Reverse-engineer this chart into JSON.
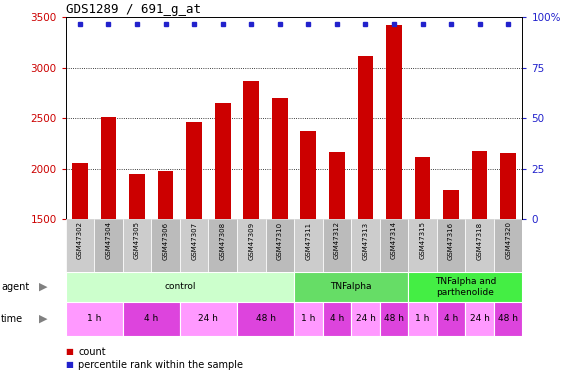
{
  "title": "GDS1289 / 691_g_at",
  "samples": [
    "GSM47302",
    "GSM47304",
    "GSM47305",
    "GSM47306",
    "GSM47307",
    "GSM47308",
    "GSM47309",
    "GSM47310",
    "GSM47311",
    "GSM47312",
    "GSM47313",
    "GSM47314",
    "GSM47315",
    "GSM47316",
    "GSM47318",
    "GSM47320"
  ],
  "counts": [
    2060,
    2510,
    1950,
    1975,
    2460,
    2650,
    2870,
    2700,
    2370,
    2165,
    3110,
    3420,
    2115,
    1790,
    2175,
    2155
  ],
  "percentiles_y": [
    3480,
    3480,
    3480,
    3480,
    3480,
    3480,
    3480,
    3480,
    3480,
    3480,
    3480,
    3480,
    3480,
    3480,
    3480,
    3480
  ],
  "bar_color": "#cc0000",
  "dot_color": "#2222cc",
  "ylim_left": [
    1500,
    3500
  ],
  "ylim_right": [
    0,
    100
  ],
  "yticks_left": [
    1500,
    2000,
    2500,
    3000,
    3500
  ],
  "yticks_right": [
    0,
    25,
    50,
    75,
    100
  ],
  "grid_yticks": [
    2000,
    2500,
    3000
  ],
  "agent_groups": [
    {
      "label": "control",
      "start": 0,
      "end": 8,
      "color": "#ccffcc"
    },
    {
      "label": "TNFalpha",
      "start": 8,
      "end": 12,
      "color": "#66dd66"
    },
    {
      "label": "TNFalpha and\nparthenolide",
      "start": 12,
      "end": 16,
      "color": "#44ee44"
    }
  ],
  "time_groups": [
    {
      "label": "1 h",
      "start": 0,
      "end": 2,
      "color": "#ff99ff"
    },
    {
      "label": "4 h",
      "start": 2,
      "end": 4,
      "color": "#dd44dd"
    },
    {
      "label": "24 h",
      "start": 4,
      "end": 6,
      "color": "#ff99ff"
    },
    {
      "label": "48 h",
      "start": 6,
      "end": 8,
      "color": "#dd44dd"
    },
    {
      "label": "1 h",
      "start": 8,
      "end": 9,
      "color": "#ff99ff"
    },
    {
      "label": "4 h",
      "start": 9,
      "end": 10,
      "color": "#dd44dd"
    },
    {
      "label": "24 h",
      "start": 10,
      "end": 11,
      "color": "#ff99ff"
    },
    {
      "label": "48 h",
      "start": 11,
      "end": 12,
      "color": "#dd44dd"
    },
    {
      "label": "1 h",
      "start": 12,
      "end": 13,
      "color": "#ff99ff"
    },
    {
      "label": "4 h",
      "start": 13,
      "end": 14,
      "color": "#dd44dd"
    },
    {
      "label": "24 h",
      "start": 14,
      "end": 15,
      "color": "#ff99ff"
    },
    {
      "label": "48 h",
      "start": 15,
      "end": 16,
      "color": "#dd44dd"
    }
  ],
  "gsm_col_colors": [
    "#cccccc",
    "#bbbbbb"
  ],
  "left_tick_color": "#cc0000",
  "right_tick_color": "#2222cc",
  "bg_color": "#ffffff"
}
